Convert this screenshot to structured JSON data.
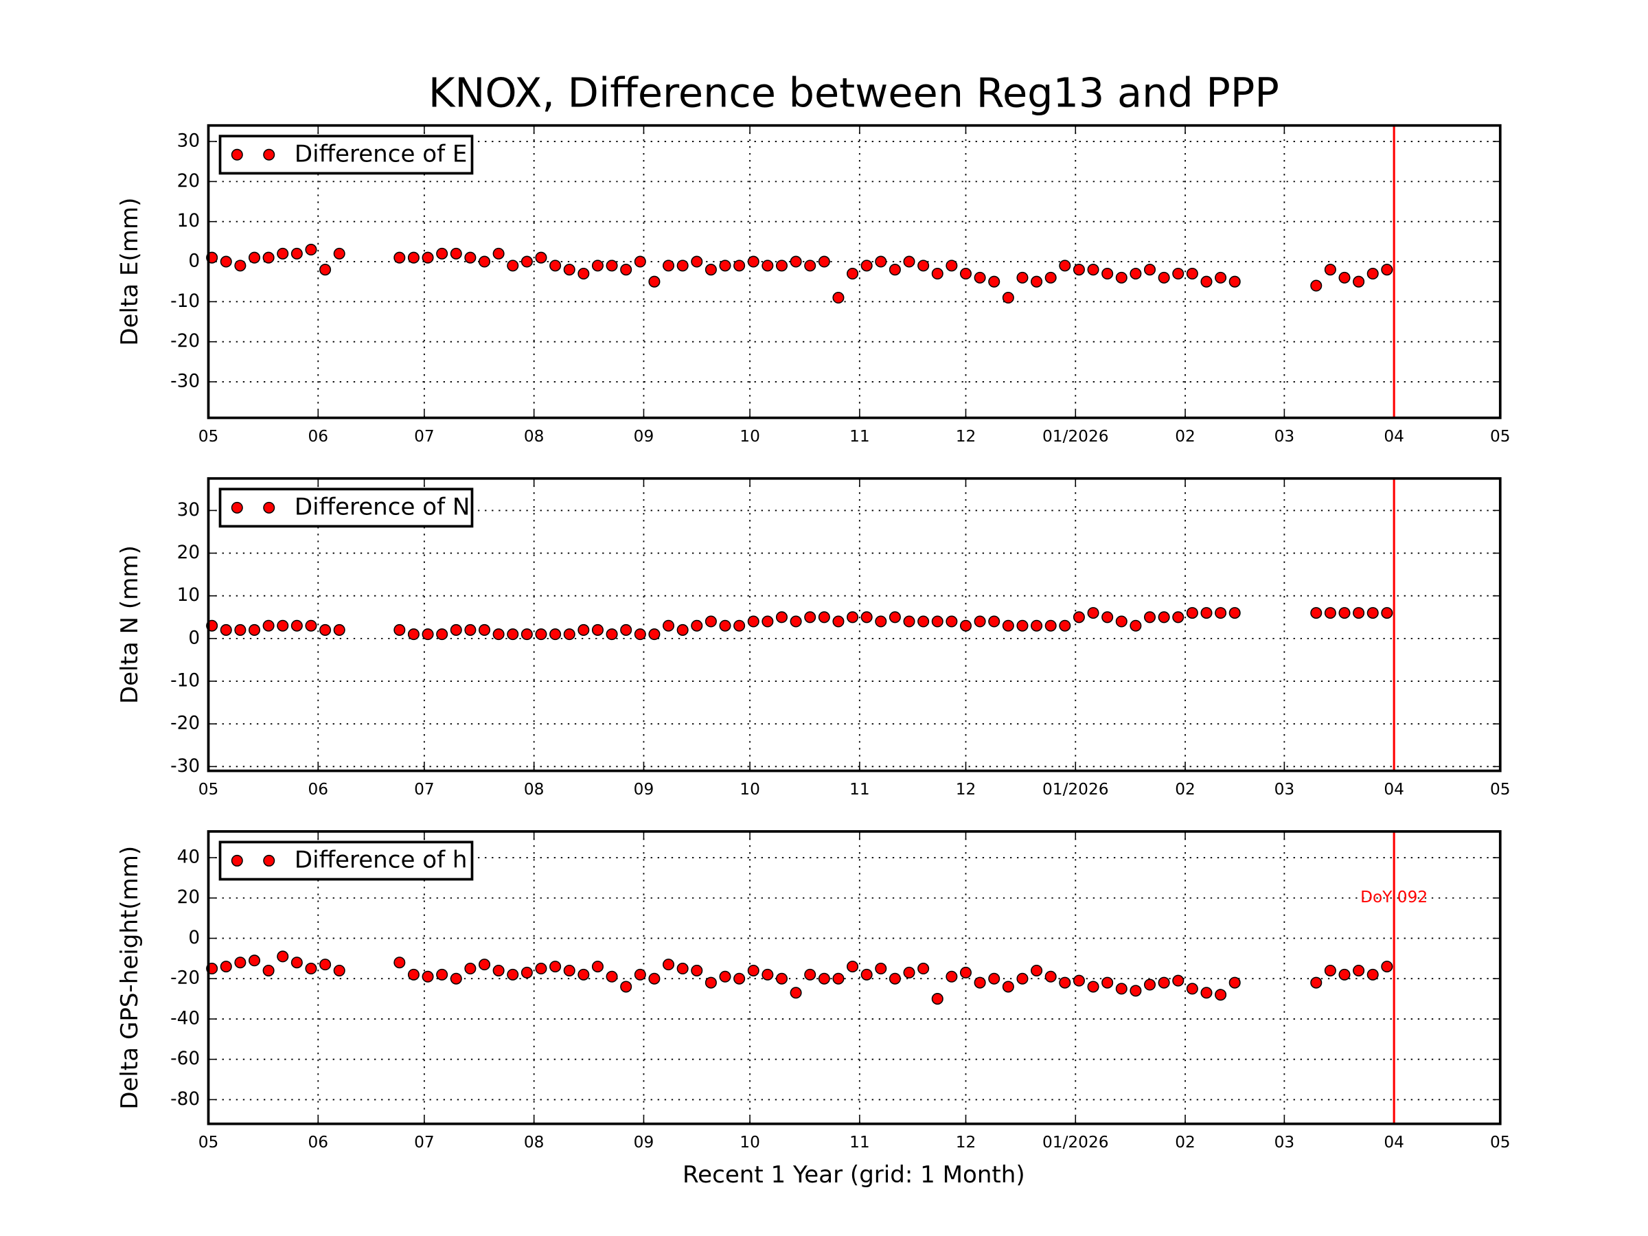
{
  "chart_data": [
    {
      "type": "scatter",
      "title": "KNOX, Difference between Reg13 and PPP",
      "ylabel": "Delta E(mm)",
      "legend": "upper left",
      "grid": true,
      "xlim": [
        0,
        365
      ],
      "ylim": [
        -39,
        34
      ],
      "xticks": [
        {
          "value": 0,
          "label": "05"
        },
        {
          "value": 31,
          "label": "06"
        },
        {
          "value": 61,
          "label": "07"
        },
        {
          "value": 92,
          "label": "08"
        },
        {
          "value": 123,
          "label": "09"
        },
        {
          "value": 153,
          "label": "10"
        },
        {
          "value": 184,
          "label": "11"
        },
        {
          "value": 214,
          "label": "12"
        },
        {
          "value": 245,
          "label": "01/2026"
        },
        {
          "value": 276,
          "label": "02"
        },
        {
          "value": 304,
          "label": "03"
        },
        {
          "value": 335,
          "label": "04"
        },
        {
          "value": 365,
          "label": "05"
        }
      ],
      "yticks": [
        -30,
        -20,
        -10,
        0,
        10,
        20,
        30
      ],
      "vline": {
        "x": 335,
        "color": "#ff0000"
      },
      "x": [
        1,
        5,
        9,
        13,
        17,
        21,
        25,
        29,
        33,
        37,
        54,
        58,
        62,
        66,
        70,
        74,
        78,
        82,
        86,
        90,
        94,
        98,
        102,
        106,
        110,
        114,
        118,
        122,
        126,
        130,
        134,
        138,
        142,
        146,
        150,
        154,
        158,
        162,
        166,
        170,
        174,
        178,
        182,
        186,
        190,
        194,
        198,
        202,
        206,
        210,
        214,
        218,
        222,
        226,
        230,
        234,
        238,
        242,
        246,
        250,
        254,
        258,
        262,
        266,
        270,
        274,
        278,
        282,
        286,
        290,
        313,
        317,
        321,
        325,
        329,
        333
      ],
      "series": [
        {
          "name": "Difference of E",
          "color": "#ff0000",
          "values": [
            1,
            0,
            -1,
            1,
            1,
            2,
            2,
            3,
            -2,
            2,
            1,
            1,
            1,
            2,
            2,
            1,
            0,
            2,
            -1,
            0,
            1,
            -1,
            -2,
            -3,
            -1,
            -1,
            -2,
            0,
            -5,
            -1,
            -1,
            0,
            -2,
            -1,
            -1,
            0,
            -1,
            -1,
            0,
            -1,
            0,
            -9,
            -3,
            -1,
            0,
            -2,
            0,
            -1,
            -3,
            -1,
            -3,
            -4,
            -5,
            -9,
            -4,
            -5,
            -4,
            -1,
            -2,
            -2,
            -3,
            -4,
            -3,
            -2,
            -4,
            -3,
            -3,
            -5,
            -4,
            -5,
            -6,
            -2,
            -4,
            -5,
            -3,
            -2
          ]
        }
      ]
    },
    {
      "type": "scatter",
      "ylabel": "Delta N (mm)",
      "legend": "upper left",
      "grid": true,
      "xlim": [
        0,
        365
      ],
      "ylim": [
        -31,
        37.5
      ],
      "xticks": [
        {
          "value": 0,
          "label": "05"
        },
        {
          "value": 31,
          "label": "06"
        },
        {
          "value": 61,
          "label": "07"
        },
        {
          "value": 92,
          "label": "08"
        },
        {
          "value": 123,
          "label": "09"
        },
        {
          "value": 153,
          "label": "10"
        },
        {
          "value": 184,
          "label": "11"
        },
        {
          "value": 214,
          "label": "12"
        },
        {
          "value": 245,
          "label": "01/2026"
        },
        {
          "value": 276,
          "label": "02"
        },
        {
          "value": 304,
          "label": "03"
        },
        {
          "value": 335,
          "label": "04"
        },
        {
          "value": 365,
          "label": "05"
        }
      ],
      "yticks": [
        -30,
        -20,
        -10,
        0,
        10,
        20,
        30
      ],
      "vline": {
        "x": 335,
        "color": "#ff0000"
      },
      "x": [
        1,
        5,
        9,
        13,
        17,
        21,
        25,
        29,
        33,
        37,
        54,
        58,
        62,
        66,
        70,
        74,
        78,
        82,
        86,
        90,
        94,
        98,
        102,
        106,
        110,
        114,
        118,
        122,
        126,
        130,
        134,
        138,
        142,
        146,
        150,
        154,
        158,
        162,
        166,
        170,
        174,
        178,
        182,
        186,
        190,
        194,
        198,
        202,
        206,
        210,
        214,
        218,
        222,
        226,
        230,
        234,
        238,
        242,
        246,
        250,
        254,
        258,
        262,
        266,
        270,
        274,
        278,
        282,
        286,
        290,
        313,
        317,
        321,
        325,
        329,
        333
      ],
      "series": [
        {
          "name": "Difference of N",
          "color": "#ff0000",
          "values": [
            3,
            2,
            2,
            2,
            3,
            3,
            3,
            3,
            2,
            2,
            2,
            1,
            1,
            1,
            2,
            2,
            2,
            1,
            1,
            1,
            1,
            1,
            1,
            2,
            2,
            1,
            2,
            1,
            1,
            3,
            2,
            3,
            4,
            3,
            3,
            4,
            4,
            5,
            4,
            5,
            5,
            4,
            5,
            5,
            4,
            5,
            4,
            4,
            4,
            4,
            3,
            4,
            4,
            3,
            3,
            3,
            3,
            3,
            5,
            6,
            5,
            4,
            3,
            5,
            5,
            5,
            6,
            6,
            6,
            6,
            6,
            6,
            6,
            6,
            6,
            6
          ]
        }
      ]
    },
    {
      "type": "scatter",
      "ylabel": "Delta GPS-height(mm)",
      "xlabel": "Recent 1 Year (grid: 1 Month)",
      "legend": "upper left",
      "grid": true,
      "xlim": [
        0,
        365
      ],
      "ylim": [
        -92,
        53
      ],
      "xticks": [
        {
          "value": 0,
          "label": "05"
        },
        {
          "value": 31,
          "label": "06"
        },
        {
          "value": 61,
          "label": "07"
        },
        {
          "value": 92,
          "label": "08"
        },
        {
          "value": 123,
          "label": "09"
        },
        {
          "value": 153,
          "label": "10"
        },
        {
          "value": 184,
          "label": "11"
        },
        {
          "value": 214,
          "label": "12"
        },
        {
          "value": 245,
          "label": "01/2026"
        },
        {
          "value": 276,
          "label": "02"
        },
        {
          "value": 304,
          "label": "03"
        },
        {
          "value": 335,
          "label": "04"
        },
        {
          "value": 365,
          "label": "05"
        }
      ],
      "yticks": [
        -80,
        -60,
        -40,
        -20,
        0,
        20,
        40
      ],
      "vline": {
        "x": 335,
        "color": "#ff0000"
      },
      "annotation": {
        "text": "DoY 092",
        "x": 335,
        "y": 20
      },
      "x": [
        1,
        5,
        9,
        13,
        17,
        21,
        25,
        29,
        33,
        37,
        54,
        58,
        62,
        66,
        70,
        74,
        78,
        82,
        86,
        90,
        94,
        98,
        102,
        106,
        110,
        114,
        118,
        122,
        126,
        130,
        134,
        138,
        142,
        146,
        150,
        154,
        158,
        162,
        166,
        170,
        174,
        178,
        182,
        186,
        190,
        194,
        198,
        202,
        206,
        210,
        214,
        218,
        222,
        226,
        230,
        234,
        238,
        242,
        246,
        250,
        254,
        258,
        262,
        266,
        270,
        274,
        278,
        282,
        286,
        290,
        313,
        317,
        321,
        325,
        329,
        333
      ],
      "series": [
        {
          "name": "Difference of h",
          "color": "#ff0000",
          "values": [
            -15,
            -14,
            -12,
            -11,
            -16,
            -9,
            -12,
            -15,
            -13,
            -16,
            -12,
            -18,
            -19,
            -18,
            -20,
            -15,
            -13,
            -16,
            -18,
            -17,
            -15,
            -14,
            -16,
            -18,
            -14,
            -19,
            -24,
            -18,
            -20,
            -13,
            -15,
            -16,
            -22,
            -19,
            -20,
            -16,
            -18,
            -20,
            -27,
            -18,
            -20,
            -20,
            -14,
            -18,
            -15,
            -20,
            -17,
            -15,
            -30,
            -19,
            -17,
            -22,
            -20,
            -24,
            -20,
            -16,
            -19,
            -22,
            -21,
            -24,
            -22,
            -25,
            -26,
            -23,
            -22,
            -21,
            -25,
            -27,
            -28,
            -22,
            -22,
            -16,
            -18,
            -16,
            -18,
            -14
          ]
        }
      ]
    }
  ]
}
